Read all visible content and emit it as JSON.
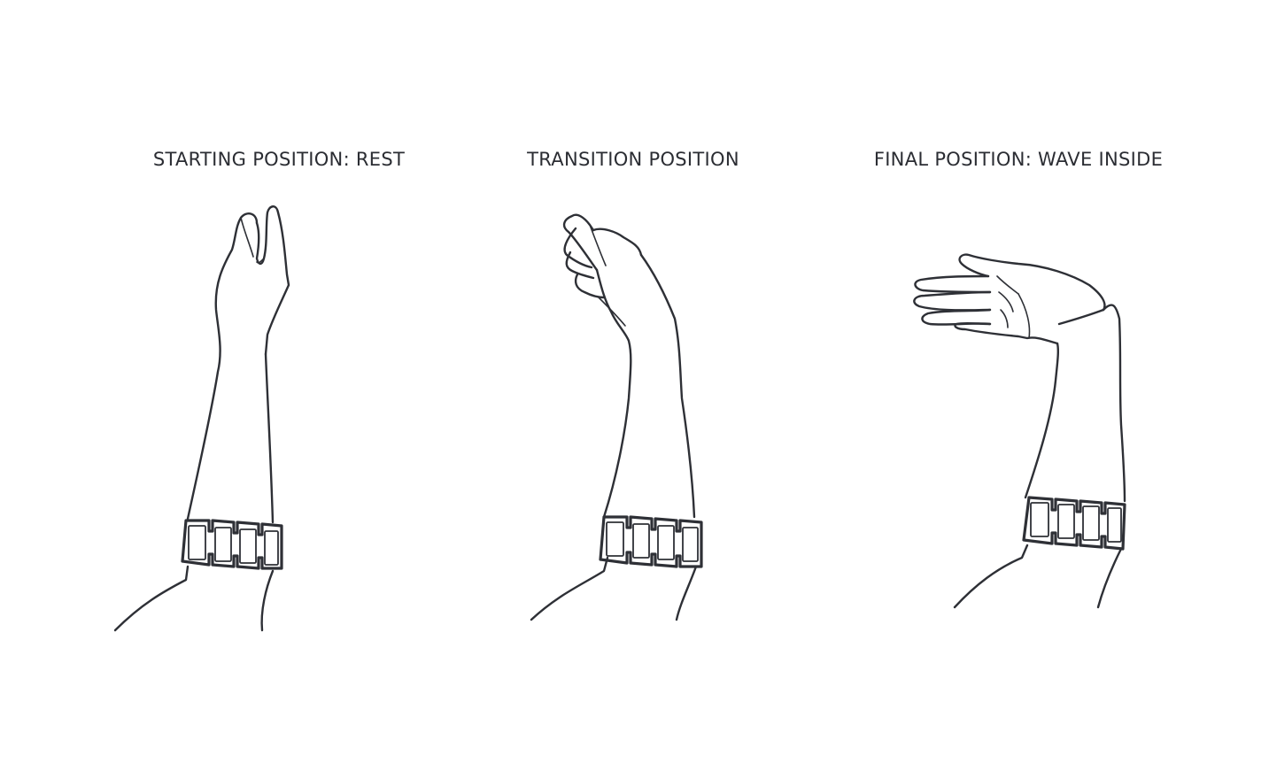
{
  "panels": [
    {
      "title": "STARTING POSITION: REST"
    },
    {
      "title": "TRANSITION POSITION"
    },
    {
      "title": "FINAL POSITION: WAVE INSIDE"
    }
  ],
  "colors": {
    "line": "#2e3036",
    "text": "#2b2d33",
    "background": "#ffffff"
  }
}
